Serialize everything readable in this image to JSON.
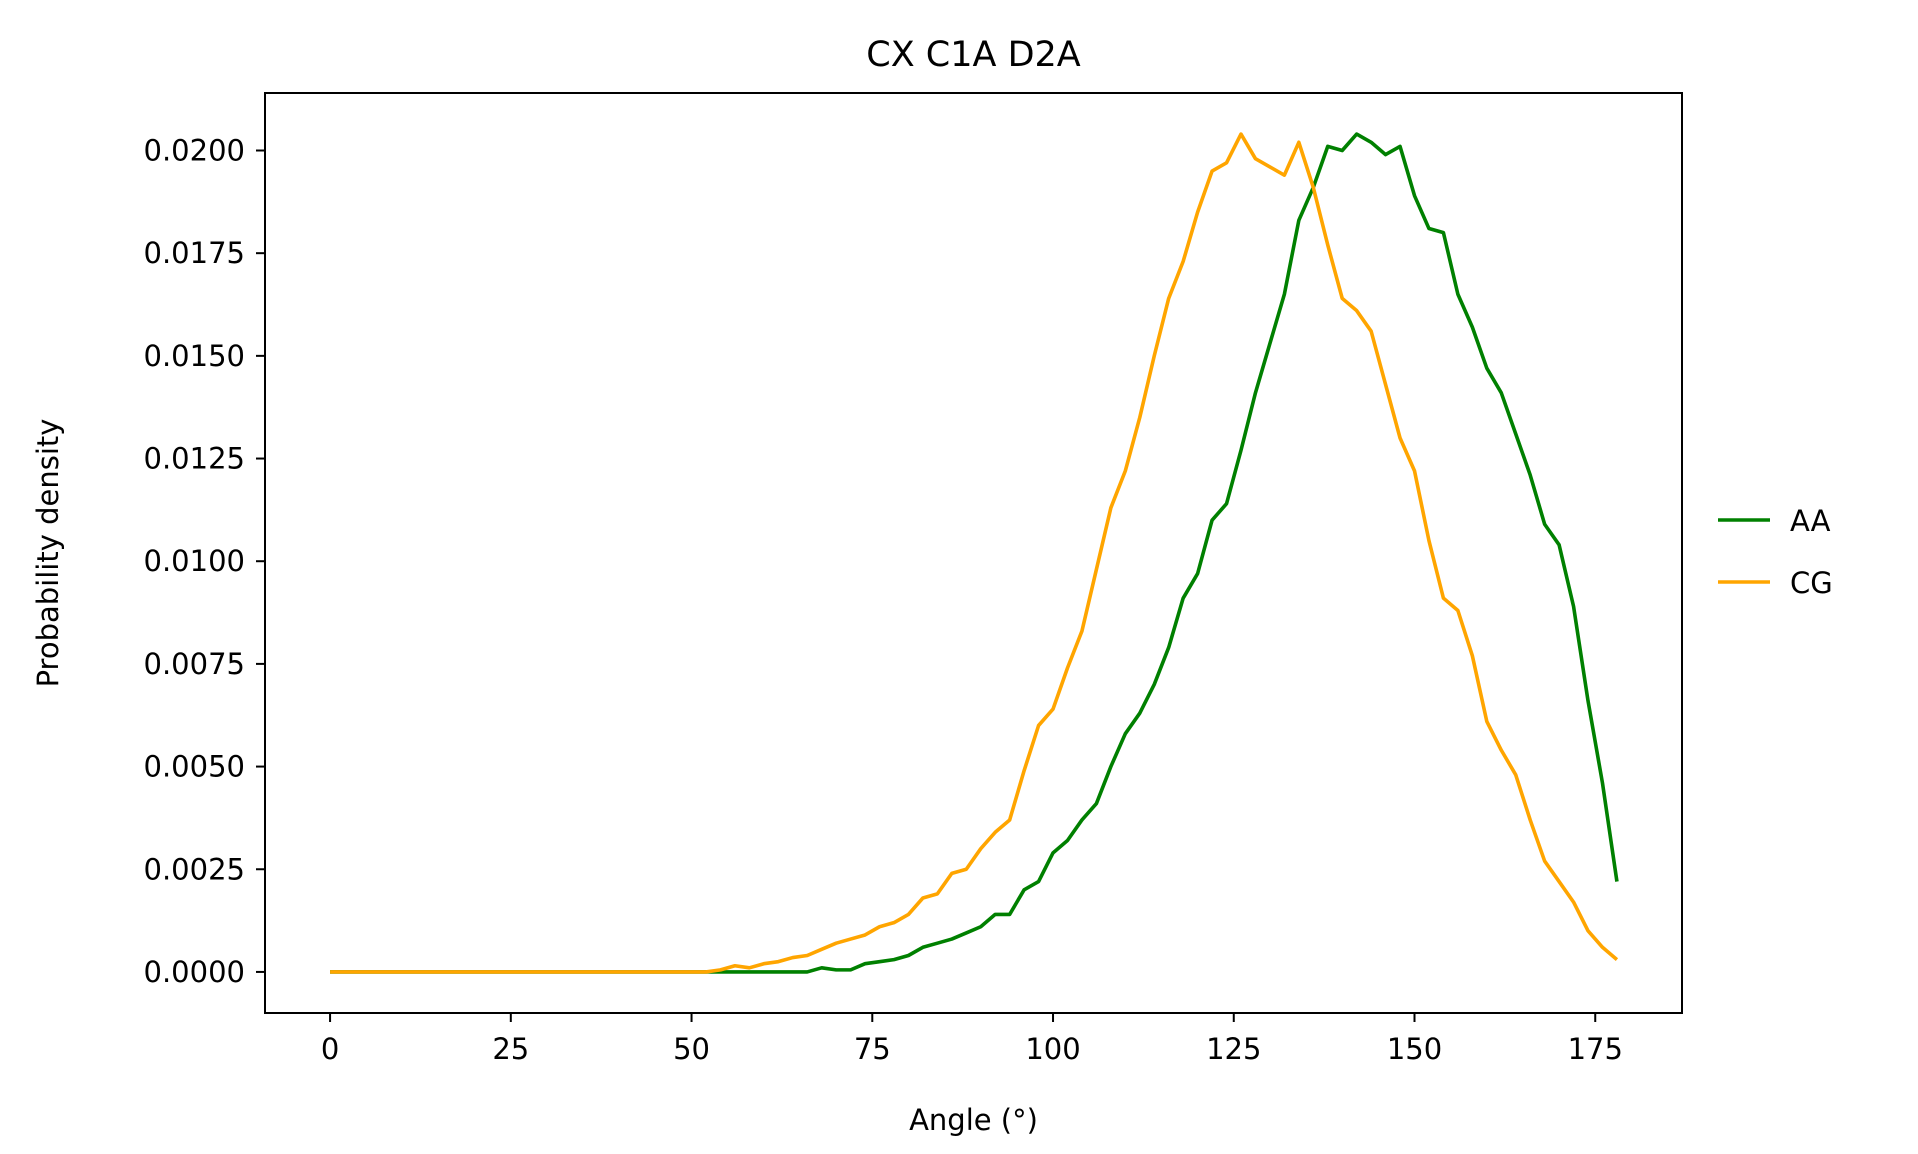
{
  "chart_data": {
    "type": "line",
    "title": "CX C1A D2A",
    "xlabel": "Angle (°)",
    "ylabel": "Probability density",
    "xlim": [
      -9,
      187
    ],
    "ylim": [
      -0.001,
      0.0214
    ],
    "xticks": [
      0,
      25,
      50,
      75,
      100,
      125,
      150,
      175
    ],
    "xtick_labels": [
      "0",
      "25",
      "50",
      "75",
      "100",
      "125",
      "150",
      "175"
    ],
    "yticks": [
      0,
      0.0025,
      0.005,
      0.0075,
      0.01,
      0.0125,
      0.015,
      0.0175,
      0.02
    ],
    "ytick_labels": [
      "0.0000",
      "0.0025",
      "0.0050",
      "0.0075",
      "0.0100",
      "0.0125",
      "0.0150",
      "0.0175",
      "0.0200"
    ],
    "grid": false,
    "legend_position": "right-outside",
    "x": [
      0,
      2,
      4,
      6,
      8,
      10,
      12,
      14,
      16,
      18,
      20,
      22,
      24,
      26,
      28,
      30,
      32,
      34,
      36,
      38,
      40,
      42,
      44,
      46,
      48,
      50,
      52,
      54,
      56,
      58,
      60,
      62,
      64,
      66,
      68,
      70,
      72,
      74,
      76,
      78,
      80,
      82,
      84,
      86,
      88,
      90,
      92,
      94,
      96,
      98,
      100,
      102,
      104,
      106,
      108,
      110,
      112,
      114,
      116,
      118,
      120,
      122,
      124,
      126,
      128,
      130,
      132,
      134,
      136,
      138,
      140,
      142,
      144,
      146,
      148,
      150,
      152,
      154,
      156,
      158,
      160,
      162,
      164,
      166,
      168,
      170,
      172,
      174,
      176,
      178
    ],
    "series": [
      {
        "name": "AA",
        "color": "#008000",
        "values": [
          0,
          0,
          0,
          0,
          0,
          0,
          0,
          0,
          0,
          0,
          0,
          0,
          0,
          0,
          0,
          0,
          0,
          0,
          0,
          0,
          0,
          0,
          0,
          0,
          0,
          0,
          0,
          0,
          0,
          0,
          0,
          0,
          0,
          0,
          0.0001,
          5e-05,
          5e-05,
          0.0002,
          0.00025,
          0.0003,
          0.0004,
          0.0006,
          0.0007,
          0.0008,
          0.00095,
          0.0011,
          0.0014,
          0.0014,
          0.002,
          0.0022,
          0.0029,
          0.0032,
          0.0037,
          0.0041,
          0.005,
          0.0058,
          0.0063,
          0.007,
          0.0079,
          0.0091,
          0.0097,
          0.011,
          0.0114,
          0.0127,
          0.0141,
          0.0153,
          0.0165,
          0.0183,
          0.0191,
          0.0201,
          0.02,
          0.0204,
          0.0202,
          0.0199,
          0.0201,
          0.0189,
          0.0181,
          0.018,
          0.0165,
          0.0157,
          0.0147,
          0.0141,
          0.0131,
          0.0121,
          0.0109,
          0.0104,
          0.0089,
          0.0066,
          0.0046,
          0.0022
        ]
      },
      {
        "name": "CG",
        "color": "#ffa500",
        "values": [
          0,
          0,
          0,
          0,
          0,
          0,
          0,
          0,
          0,
          0,
          0,
          0,
          0,
          0,
          0,
          0,
          0,
          0,
          0,
          0,
          0,
          0,
          0,
          0,
          0,
          0,
          0,
          5e-05,
          0.00015,
          0.0001,
          0.0002,
          0.00025,
          0.00035,
          0.0004,
          0.00055,
          0.0007,
          0.0008,
          0.0009,
          0.0011,
          0.0012,
          0.0014,
          0.0018,
          0.0019,
          0.0024,
          0.0025,
          0.003,
          0.0034,
          0.0037,
          0.0049,
          0.006,
          0.0064,
          0.0074,
          0.0083,
          0.0098,
          0.0113,
          0.0122,
          0.0135,
          0.015,
          0.0164,
          0.0173,
          0.0185,
          0.0195,
          0.0197,
          0.0204,
          0.0198,
          0.0196,
          0.0194,
          0.0202,
          0.0191,
          0.0177,
          0.0164,
          0.0161,
          0.0156,
          0.0143,
          0.013,
          0.0122,
          0.0105,
          0.0091,
          0.0088,
          0.0077,
          0.0061,
          0.0054,
          0.0048,
          0.0037,
          0.0027,
          0.0022,
          0.0017,
          0.001,
          0.0006,
          0.0003
        ]
      }
    ]
  }
}
